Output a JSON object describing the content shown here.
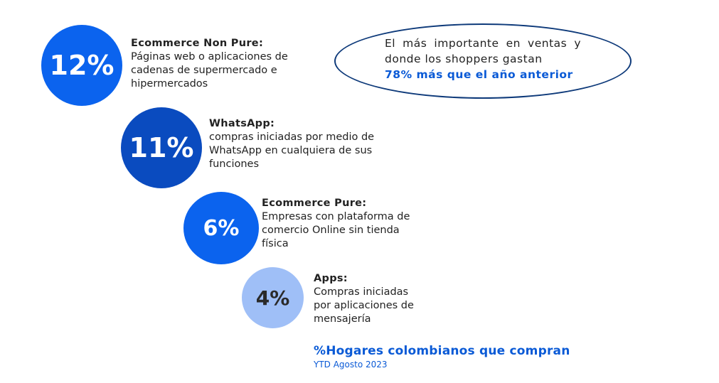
{
  "colors": {
    "primary": "#0b63ee",
    "dark": "#0a4bbf",
    "light": "#9fbff7",
    "accent_text": "#0a5ad6"
  },
  "items": [
    {
      "value": "12%",
      "title": "Ecommerce Non Pure:",
      "text": "Páginas web o aplicaciones de cadenas de supermercado e hipermercados"
    },
    {
      "value": "11%",
      "title": "WhatsApp:",
      "text": "compras iniciadas por medio de WhatsApp en cualquiera de sus funciones"
    },
    {
      "value": "6%",
      "title": "Ecommerce Pure:",
      "text": "Empresas con plataforma de comercio Online sin tienda física"
    },
    {
      "value": "4%",
      "title": "Apps:",
      "text": "Compras iniciadas por aplicaciones de mensajería"
    }
  ],
  "callout": {
    "text": "El más importante en ventas y donde los shoppers gastan",
    "highlight": "78% más que el año anterior"
  },
  "footer": {
    "title": "%Hogares colombianos que compran",
    "subtitle": "YTD Agosto 2023"
  }
}
